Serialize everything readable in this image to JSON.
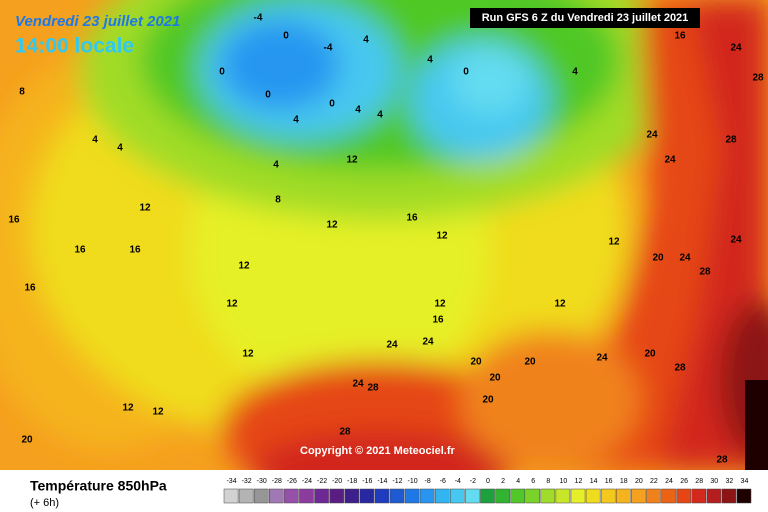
{
  "header": {
    "date": "Vendredi 23 juillet 2021",
    "local_time": "14:00 locale",
    "run_info": "Run GFS 6 Z du Vendredi 23 juillet 2021"
  },
  "map": {
    "copyright": "Copyright © 2021 Meteociel.fr",
    "contour_labels": [
      "-4",
      "0",
      "-4",
      "4",
      "0",
      "0",
      "4",
      "0",
      "4",
      "4",
      "4",
      "0",
      "4",
      "8",
      "4",
      "4",
      "12",
      "8",
      "4",
      "16",
      "12",
      "16",
      "16",
      "12",
      "16",
      "12",
      "12",
      "24",
      "24",
      "28",
      "24",
      "20",
      "24",
      "28",
      "16",
      "12",
      "12",
      "12",
      "16",
      "12",
      "24",
      "24",
      "20",
      "20",
      "24",
      "20",
      "28",
      "24",
      "28",
      "20",
      "20",
      "12",
      "12",
      "20",
      "28",
      "28",
      "16",
      "24",
      "28",
      "12"
    ]
  },
  "legend": {
    "title": "Température 850hPa",
    "subtitle": "(+ 6h)",
    "labels": [
      -34,
      -32,
      -30,
      -28,
      -26,
      -24,
      -22,
      -20,
      -18,
      -16,
      -14,
      -12,
      -10,
      -8,
      -6,
      -4,
      -2,
      0,
      2,
      4,
      6,
      8,
      10,
      12,
      14,
      16,
      18,
      20,
      22,
      24,
      26,
      28,
      30,
      32,
      34
    ],
    "colors": [
      "#d2d2d2",
      "#b4b4b4",
      "#969696",
      "#a078b4",
      "#9650aa",
      "#8c3c9c",
      "#6e2896",
      "#5a1e82",
      "#3c1e8c",
      "#2828a0",
      "#1e3cbe",
      "#1e5ad2",
      "#1e78e6",
      "#2896f0",
      "#32b4f0",
      "#46c8f0",
      "#64dcf0",
      "#1ea03c",
      "#32b432",
      "#50c828",
      "#78d228",
      "#a0dc28",
      "#c8e628",
      "#e6f028",
      "#f0dc1e",
      "#f5c81e",
      "#f5b41e",
      "#f5a01e",
      "#f0821e",
      "#eb6414",
      "#e64614",
      "#d2281e",
      "#b41e1e",
      "#8c1414",
      "#1e0000"
    ]
  }
}
